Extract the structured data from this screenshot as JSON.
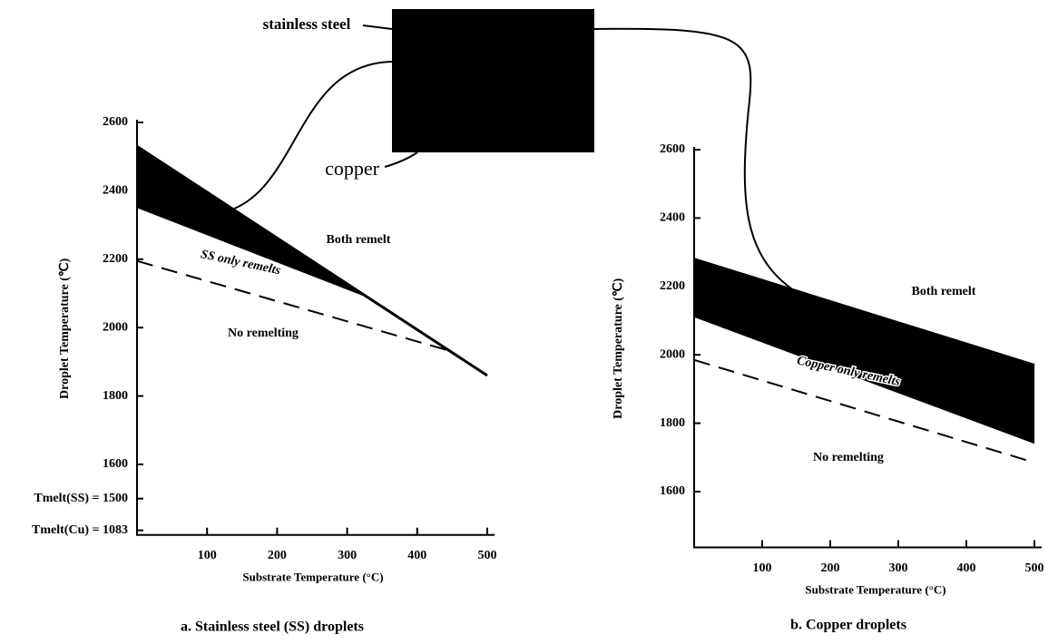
{
  "chart_data": [
    {
      "type": "line",
      "caption": "a. Stainless steel (SS) droplets",
      "xlabel": "Substrate Temperature (°C)",
      "ylabel": "Droplet Temperature (℃)",
      "xlim": [
        0,
        500
      ],
      "xticks": [
        100,
        200,
        300,
        400,
        500
      ],
      "ylim": [
        1083,
        2600
      ],
      "ybreak": 1500,
      "yticks": [
        {
          "value": 1083,
          "label": "Tmelt(Cu) = 1083"
        },
        {
          "value": 1500,
          "label": "Tmelt(SS) = 1500"
        },
        1600,
        1800,
        2000,
        2200,
        2400,
        2600
      ],
      "series": [
        {
          "type": "band",
          "color": "#000000",
          "x": [
            0,
            330
          ],
          "values": [
            2530,
            2087
          ],
          "lower": [
            2350,
            2087
          ]
        },
        {
          "type": "line",
          "color": "#000000",
          "style": "solid",
          "x": [
            0,
            500
          ],
          "values": [
            2530,
            1860
          ]
        },
        {
          "type": "line",
          "color": "#000000",
          "style": "dashed",
          "x": [
            0,
            450
          ],
          "values": [
            2195,
            1930
          ]
        }
      ],
      "annotations": [
        "Both remelt",
        "SS only remelts",
        "No remelting"
      ]
    },
    {
      "type": "line",
      "caption": "b. Copper droplets",
      "xlabel": "Substrate Temperature (°C)",
      "ylabel": "Droplet Temperature (℃)",
      "xlim": [
        0,
        500
      ],
      "xticks": [
        100,
        200,
        300,
        400,
        500
      ],
      "ylim": [
        1450,
        2600
      ],
      "yticks": [
        1600,
        1800,
        2000,
        2200,
        2400,
        2600
      ],
      "series": [
        {
          "type": "band",
          "color": "#000000",
          "x": [
            0,
            500
          ],
          "values": [
            2280,
            1970
          ],
          "lower": [
            2110,
            1740
          ]
        },
        {
          "type": "line",
          "color": "#000000",
          "style": "solid",
          "x": [
            0,
            500
          ],
          "values": [
            2280,
            1970
          ]
        },
        {
          "type": "line",
          "color": "#000000",
          "style": "dashed",
          "x": [
            0,
            500
          ],
          "values": [
            1985,
            1685
          ]
        }
      ],
      "annotations": [
        "Both remelt",
        "Copper only remelts",
        "No remelting"
      ]
    }
  ],
  "inset_labels": [
    "stainless steel",
    "copper"
  ]
}
